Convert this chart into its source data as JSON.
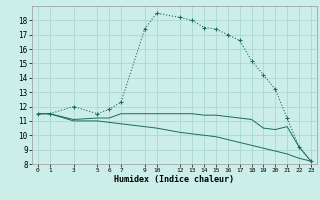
{
  "xlabel": "Humidex (Indice chaleur)",
  "background_color": "#cceee8",
  "grid_color": "#aad8d0",
  "line_color": "#1a6b5a",
  "xlim": [
    -0.5,
    23.5
  ],
  "ylim": [
    8,
    19
  ],
  "xticks": [
    0,
    1,
    3,
    5,
    6,
    7,
    9,
    10,
    12,
    13,
    14,
    15,
    16,
    17,
    18,
    19,
    20,
    21,
    22,
    23
  ],
  "yticks": [
    8,
    9,
    10,
    11,
    12,
    13,
    14,
    15,
    16,
    17,
    18
  ],
  "line1_x": [
    0,
    1,
    3,
    5,
    6,
    7,
    9,
    10,
    12,
    13,
    14,
    15,
    16,
    17,
    18,
    19,
    20,
    21,
    22,
    23
  ],
  "line1_y": [
    11.5,
    11.5,
    12.0,
    11.5,
    11.8,
    12.3,
    17.4,
    18.5,
    18.2,
    18.0,
    17.5,
    17.4,
    17.0,
    16.6,
    15.2,
    14.2,
    13.2,
    11.2,
    9.2,
    8.2
  ],
  "line2_x": [
    0,
    1,
    3,
    5,
    6,
    7,
    9,
    10,
    12,
    13,
    14,
    15,
    16,
    17,
    18,
    19,
    20,
    21,
    22,
    23
  ],
  "line2_y": [
    11.5,
    11.5,
    11.1,
    11.2,
    11.2,
    11.5,
    11.5,
    11.5,
    11.5,
    11.5,
    11.4,
    11.4,
    11.3,
    11.2,
    11.1,
    10.5,
    10.4,
    10.6,
    9.2,
    8.2
  ],
  "line3_x": [
    0,
    1,
    3,
    5,
    6,
    7,
    9,
    10,
    12,
    13,
    14,
    15,
    16,
    17,
    18,
    19,
    20,
    21,
    22,
    23
  ],
  "line3_y": [
    11.5,
    11.5,
    11.0,
    11.0,
    10.9,
    10.8,
    10.6,
    10.5,
    10.2,
    10.1,
    10.0,
    9.9,
    9.7,
    9.5,
    9.3,
    9.1,
    8.9,
    8.7,
    8.4,
    8.2
  ]
}
